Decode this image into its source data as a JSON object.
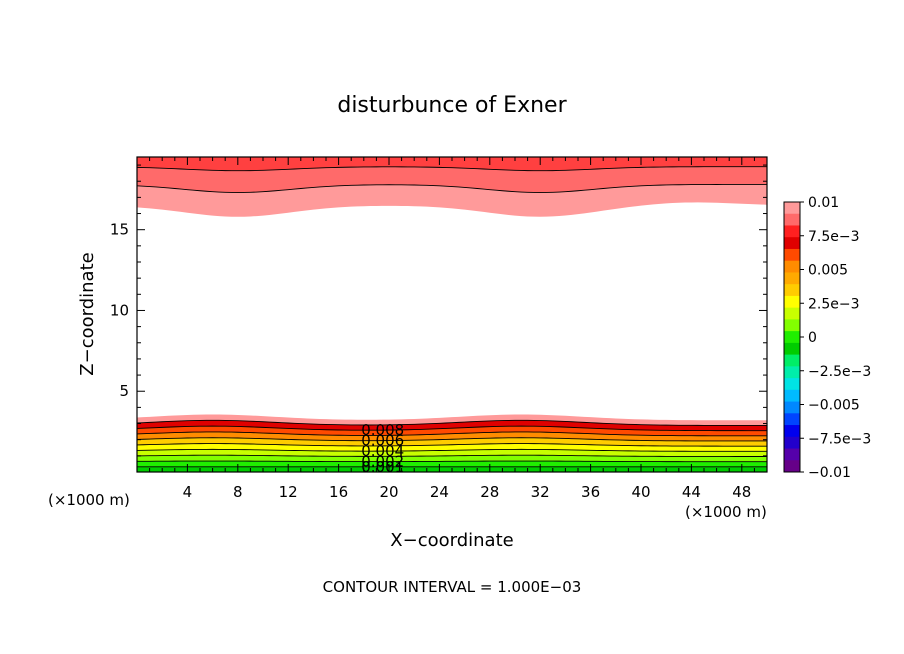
{
  "chart_data": {
    "type": "contour",
    "title": "disturbunce of Exner",
    "xlabel": "X−coordinate",
    "ylabel": "Z−coordinate",
    "x_unit_left": "(×1000 m)",
    "x_unit_right": "(×1000 m)",
    "xlim": [
      0,
      50
    ],
    "ylim": [
      0,
      19.5
    ],
    "x_ticks": [
      4,
      8,
      12,
      16,
      20,
      24,
      28,
      32,
      36,
      40,
      44,
      48
    ],
    "y_ticks": [
      5,
      10,
      15
    ],
    "contour_interval_text": "CONTOUR INTERVAL = 1.000E−03",
    "contour_labels": [
      "0.008",
      "0.006",
      "0.004",
      "0.002",
      "0.001"
    ],
    "colorbar": {
      "range": [
        -0.01,
        0.01
      ],
      "tick_labels": [
        "0.01",
        "7.5e−3",
        "0.005",
        "2.5e−3",
        "0",
        "−2.5e−3",
        "−0.005",
        "−7.5e−3",
        "−0.01"
      ],
      "colors": [
        "#ff9a9a",
        "#ff6a6a",
        "#ff2020",
        "#e00000",
        "#ff4a00",
        "#ff8c00",
        "#ffaa00",
        "#ffcc00",
        "#ffff00",
        "#c8ff00",
        "#82ff00",
        "#20ee00",
        "#00cc00",
        "#00ee66",
        "#00eeaa",
        "#00e4e4",
        "#00bbff",
        "#0088ff",
        "#0044ff",
        "#0000ee",
        "#2200cc",
        "#5500aa",
        "#660088"
      ]
    },
    "bands": {
      "bottom_levels": [
        0.0,
        0.001,
        0.002,
        0.003,
        0.004,
        0.005,
        0.006,
        0.007,
        0.008,
        0.009
      ],
      "bottom_colors": [
        "#00cc00",
        "#20ee00",
        "#82ff00",
        "#c8ff00",
        "#ffff00",
        "#ffcc00",
        "#ff8c00",
        "#ff4a00",
        "#e00000",
        "#ff9a9a"
      ],
      "top_colors": [
        "#ff9a9a",
        "#ff6a6a",
        "#ff4040"
      ]
    }
  }
}
